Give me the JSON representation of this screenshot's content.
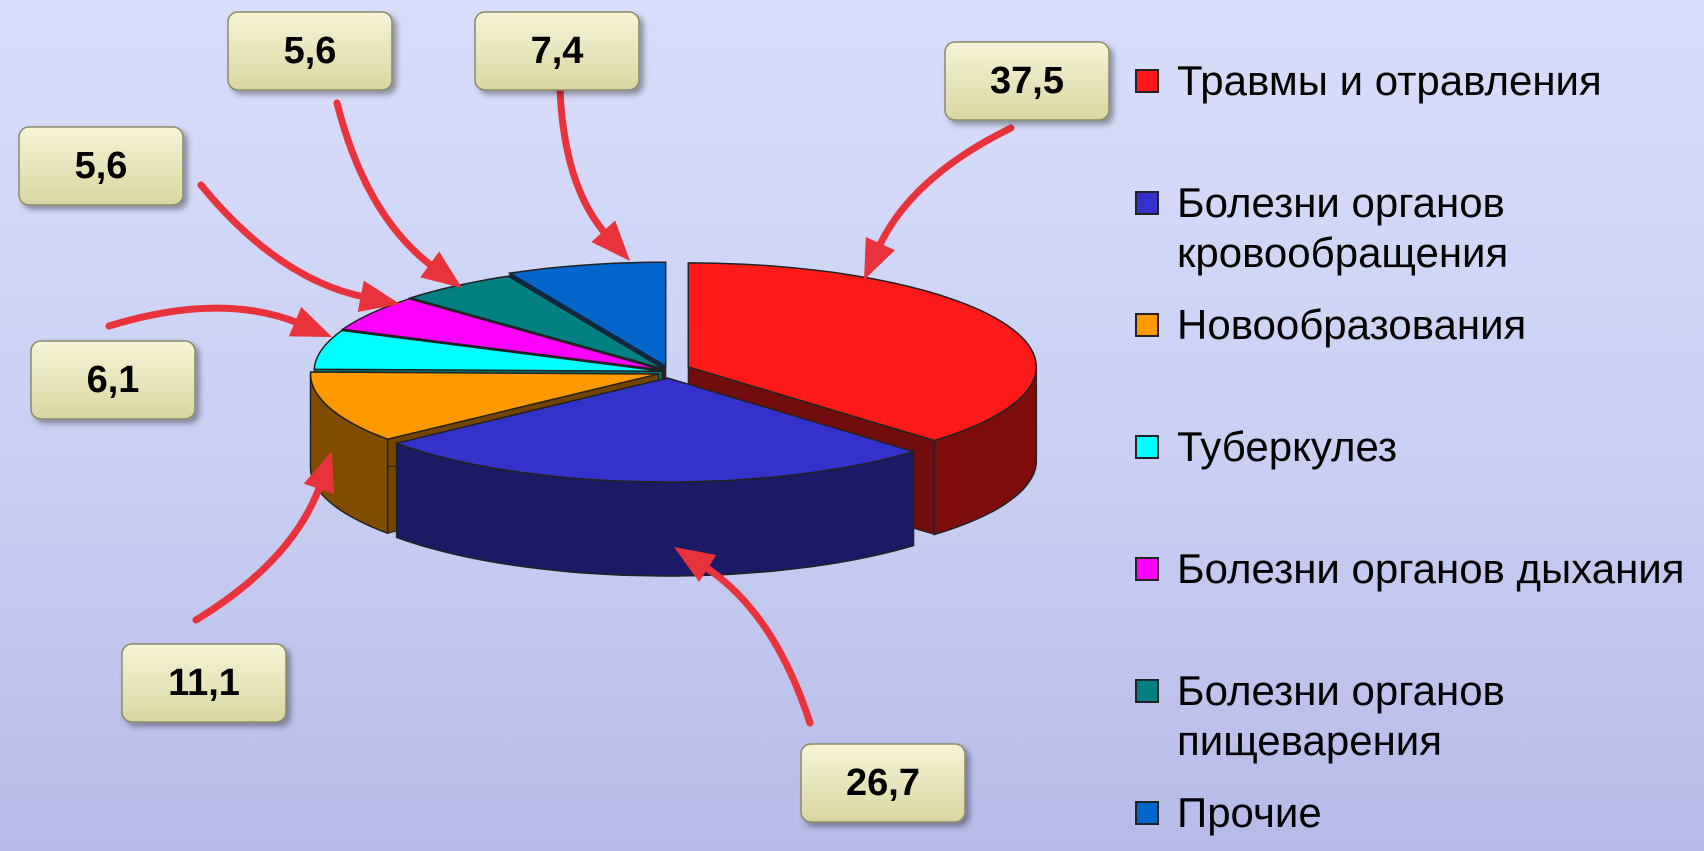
{
  "chart_data": {
    "type": "pie3d",
    "categories": [
      "Травмы и отравления",
      "Болезни органов кровообращения",
      "Новообразования",
      "Туберкулез",
      "Болезни органов дыхания",
      "Болезни органов пищеварения",
      "Прочие"
    ],
    "values": [
      37.5,
      26.7,
      11.1,
      6.1,
      5.6,
      5.6,
      7.4
    ],
    "value_labels": [
      "37,5",
      "26,7",
      "11,1",
      "6,1",
      "5,6",
      "5,6",
      "7,4"
    ],
    "colors": [
      "#ff1a1a",
      "#3333cc",
      "#ff9900",
      "#00ffff",
      "#ff00ff",
      "#008080",
      "#0066cc"
    ],
    "legend": "right"
  }
}
